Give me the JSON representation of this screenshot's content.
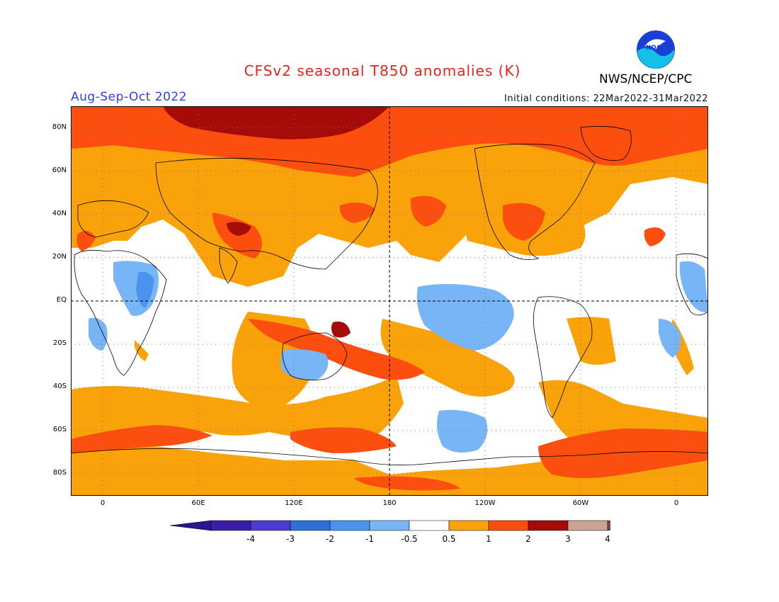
{
  "header": {
    "title": "CFSv2 seasonal T850 anomalies (K)",
    "season": "Aug-Sep-Oct 2022",
    "initial_conditions": "Initial conditions: 22Mar2022-31Mar2022",
    "agency": "NWS/NCEP/CPC",
    "logo_text": "NOAA"
  },
  "map": {
    "lat_labels": [
      "80N",
      "60N",
      "40N",
      "20N",
      "EQ",
      "20S",
      "40S",
      "60S",
      "80S"
    ],
    "lat_values": [
      80,
      60,
      40,
      20,
      0,
      -20,
      -40,
      -60,
      -80
    ],
    "lon_labels": [
      "0",
      "60E",
      "120E",
      "180",
      "120W",
      "60W",
      "0"
    ],
    "lon_values": [
      0,
      60,
      120,
      180,
      240,
      300,
      360
    ],
    "lon_range": [
      -20,
      380
    ],
    "lat_range": [
      -90,
      90
    ],
    "colors": {
      "lt_-3": "#3a1ea8",
      "-3_-2": "#4b3bd1",
      "-2_-1": "#2f6fd8",
      "-1_-0.5": "#78b5f7",
      "-0.5_0.5": "#ffffff",
      "0.5_1": "#f9a20a",
      "1_2": "#fc4f0f",
      "2_3": "#a50b08",
      "3_4": "#c9a394"
    }
  },
  "colorbar": {
    "tick_labels": [
      "-4",
      "-3",
      "-2",
      "-1",
      "-0.5",
      "0.5",
      "1",
      "2",
      "3",
      "4"
    ],
    "colors": [
      "#3a1ea8",
      "#4b3bd1",
      "#2f6fd8",
      "#4a93ee",
      "#78b5f7",
      "#ffffff",
      "#f9a20a",
      "#fc4f0f",
      "#a50b08",
      "#c9a394"
    ],
    "under_color": "#2a1593",
    "over_color": "#7a4a3a"
  }
}
